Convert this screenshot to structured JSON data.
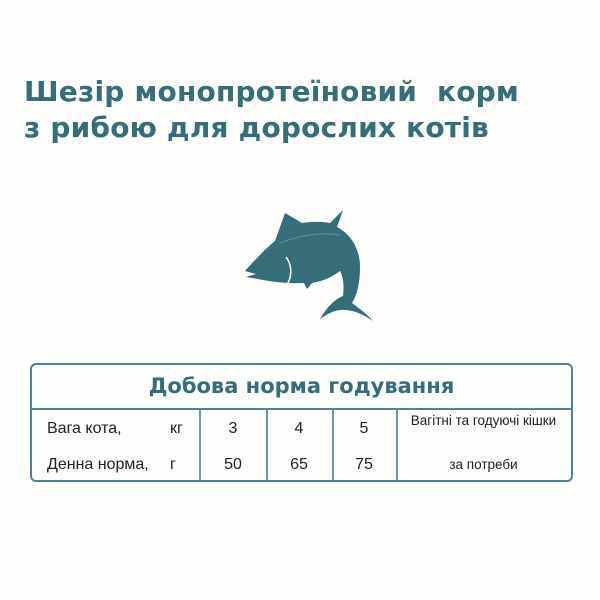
{
  "title": {
    "line1": "Шезір монопротеїновий  корм",
    "line2": "з рибою для дорослих котів"
  },
  "icon": "fish-icon",
  "colors": {
    "accent": "#356d78",
    "border": "#4d8692"
  },
  "table": {
    "title": "Добова норма годування",
    "rows": [
      {
        "label": "Вага кота,",
        "unit": "кг",
        "values": [
          "3",
          "4",
          "5",
          "Вагітні та годуючі кішки"
        ]
      },
      {
        "label": "Денна норма,",
        "unit": "г",
        "values": [
          "50",
          "65",
          "75",
          "за потреби"
        ]
      }
    ]
  }
}
